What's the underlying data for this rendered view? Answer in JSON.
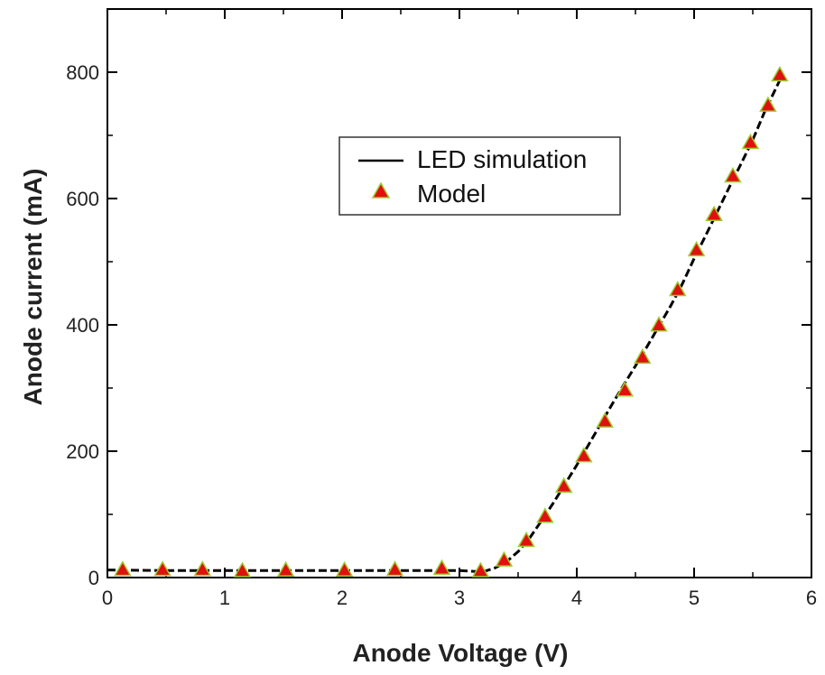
{
  "chart_data": {
    "type": "line",
    "xlabel": "Anode Voltage (V)",
    "ylabel": "Anode current (mA)",
    "xlim": [
      0,
      6
    ],
    "ylim": [
      0,
      900
    ],
    "xticks": [
      0,
      1,
      2,
      3,
      4,
      5,
      6
    ],
    "yticks": [
      0,
      200,
      400,
      600,
      800
    ],
    "grid": false,
    "legend_position": "upper-center",
    "series": [
      {
        "name": "LED simulation",
        "style": "line",
        "color": "#000000",
        "x": [
          0.0,
          0.5,
          1.0,
          1.5,
          2.0,
          2.5,
          3.0,
          3.1,
          3.2,
          3.3,
          3.4,
          3.5,
          3.6,
          3.7,
          3.8,
          3.9,
          4.0,
          4.1,
          4.2,
          4.3,
          4.4,
          4.5,
          4.6,
          4.7,
          4.8,
          4.9,
          5.0,
          5.1,
          5.2,
          5.3,
          5.4,
          5.5,
          5.6,
          5.75
        ],
        "y": [
          12,
          11,
          11,
          11,
          11,
          11,
          11,
          10,
          9,
          15,
          25,
          41,
          63,
          90,
          118,
          148,
          178,
          210,
          242,
          274,
          305,
          335,
          366,
          398,
          430,
          465,
          505,
          542,
          580,
          618,
          655,
          693,
          737,
          795
        ]
      },
      {
        "name": "Model",
        "style": "markers",
        "marker": "triangle",
        "color": "#e01010",
        "edge_color": "#9acd32",
        "x": [
          0.13,
          0.47,
          0.81,
          1.15,
          1.52,
          2.02,
          2.45,
          2.85,
          3.18,
          3.38,
          3.57,
          3.73,
          3.89,
          4.06,
          4.24,
          4.41,
          4.56,
          4.7,
          4.86,
          5.02,
          5.17,
          5.33,
          5.48,
          5.63,
          5.73
        ],
        "y": [
          12,
          12,
          12,
          10,
          11,
          11,
          12,
          14,
          10,
          27,
          58,
          96,
          144,
          192,
          247,
          296,
          348,
          399,
          455,
          518,
          574,
          635,
          688,
          747,
          795
        ]
      }
    ]
  }
}
